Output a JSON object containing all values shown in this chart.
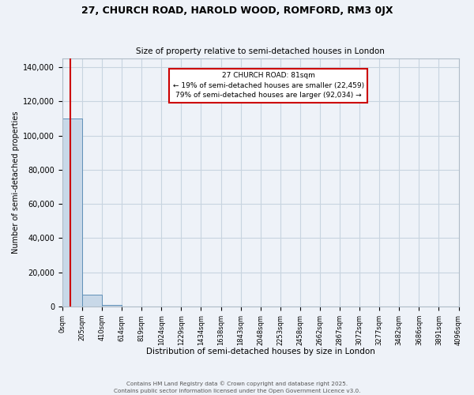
{
  "title_line1": "27, CHURCH ROAD, HAROLD WOOD, ROMFORD, RM3 0JX",
  "title_line2": "Size of property relative to semi-detached houses in London",
  "xlabel": "Distribution of semi-detached houses by size in London",
  "ylabel": "Number of semi-detached properties",
  "annotation_title": "27 CHURCH ROAD: 81sqm",
  "annotation_line1": "← 19% of semi-detached houses are smaller (22,459)",
  "annotation_line2": "79% of semi-detached houses are larger (92,034) →",
  "footer_line1": "Contains HM Land Registry data © Crown copyright and database right 2025.",
  "footer_line2": "Contains public sector information licensed under the Open Government Licence v3.0.",
  "property_bin_index": 0,
  "bar_color": "#c8d8e8",
  "bar_edge_color": "#6090b8",
  "vline_color": "#cc0000",
  "annotation_box_color": "#cc0000",
  "grid_color": "#c8d4e0",
  "background_color": "#eef2f8",
  "bin_labels": [
    "0sqm",
    "205sqm",
    "410sqm",
    "614sqm",
    "819sqm",
    "1024sqm",
    "1229sqm",
    "1434sqm",
    "1638sqm",
    "1843sqm",
    "2048sqm",
    "2253sqm",
    "2458sqm",
    "2662sqm",
    "2867sqm",
    "3072sqm",
    "3277sqm",
    "3482sqm",
    "3686sqm",
    "3891sqm",
    "4096sqm"
  ],
  "bar_heights": [
    110000,
    7000,
    800,
    200,
    80,
    40,
    20,
    10,
    8,
    5,
    4,
    3,
    2,
    2,
    1,
    1,
    1,
    0,
    0,
    0
  ],
  "ylim": [
    0,
    145000
  ],
  "yticks": [
    0,
    20000,
    40000,
    60000,
    80000,
    100000,
    120000,
    140000
  ]
}
